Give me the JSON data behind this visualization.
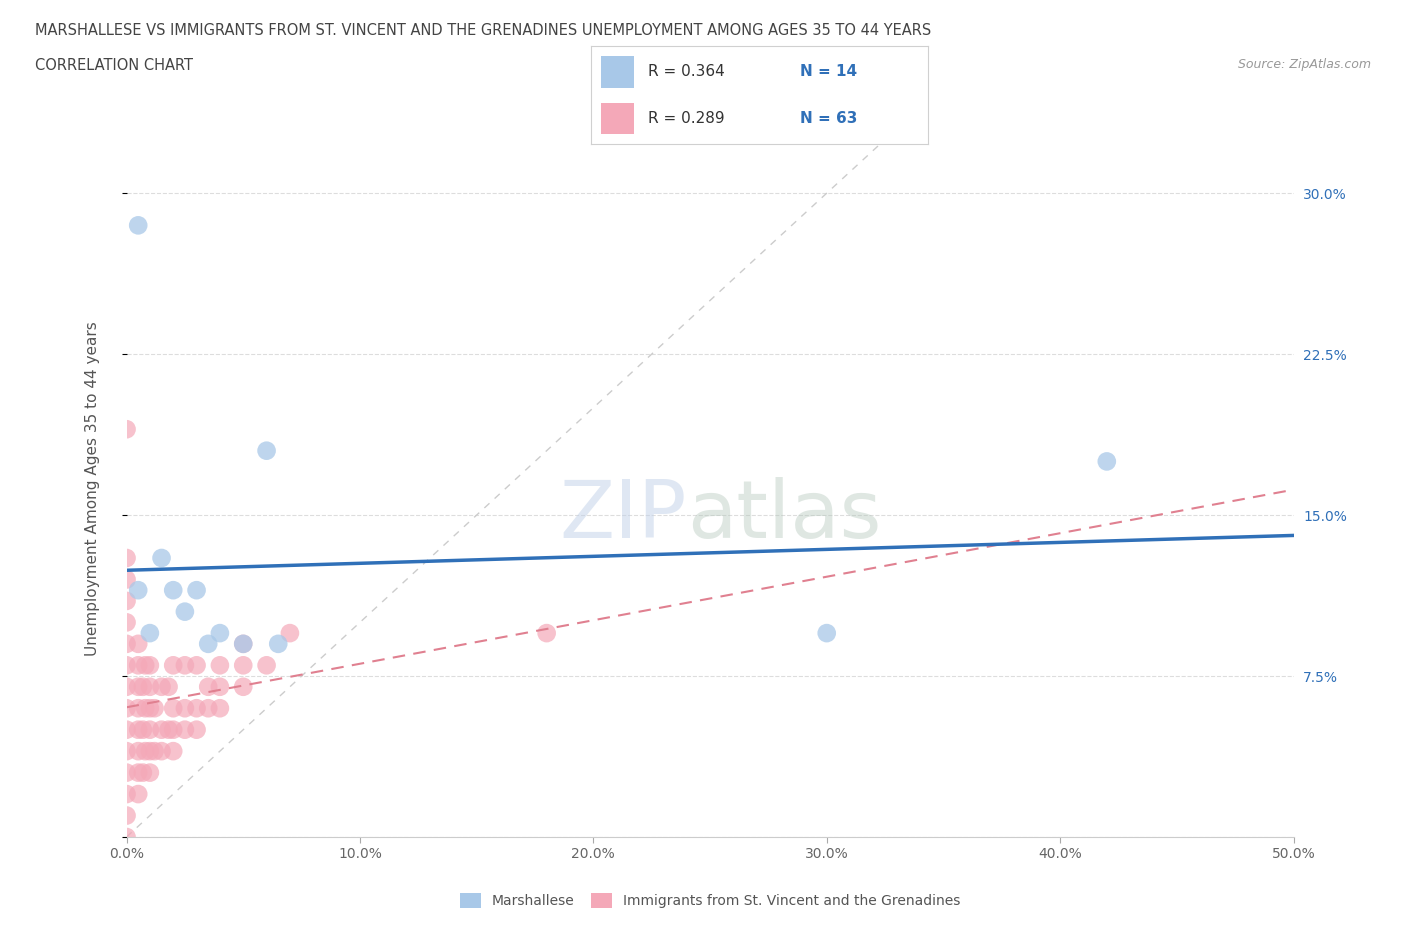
{
  "title_line1": "MARSHALLESE VS IMMIGRANTS FROM ST. VINCENT AND THE GRENADINES UNEMPLOYMENT AMONG AGES 35 TO 44 YEARS",
  "title_line2": "CORRELATION CHART",
  "source": "Source: ZipAtlas.com",
  "ylabel": "Unemployment Among Ages 35 to 44 years",
  "xlim": [
    0.0,
    0.5
  ],
  "ylim": [
    0.0,
    0.325
  ],
  "xticks": [
    0.0,
    0.1,
    0.2,
    0.3,
    0.4,
    0.5
  ],
  "yticks": [
    0.0,
    0.075,
    0.15,
    0.225,
    0.3
  ],
  "xticklabels": [
    "0.0%",
    "10.0%",
    "20.0%",
    "30.0%",
    "40.0%",
    "50.0%"
  ],
  "yticklabels_right": [
    "",
    "7.5%",
    "15.0%",
    "22.5%",
    "30.0%"
  ],
  "watermark_zip": "ZIP",
  "watermark_atlas": "atlas",
  "blue_color": "#a8c8e8",
  "pink_color": "#f4a8b8",
  "trend_blue": "#3070b8",
  "trend_pink": "#e08090",
  "ref_line_color": "#cccccc",
  "grid_color": "#dddddd",
  "background": "#ffffff",
  "legend_label1": "Marshallese",
  "legend_label2": "Immigrants from St. Vincent and the Grenadines",
  "marshallese_x": [
    0.005,
    0.005,
    0.01,
    0.015,
    0.02,
    0.025,
    0.03,
    0.035,
    0.04,
    0.05,
    0.06,
    0.065,
    0.3,
    0.42
  ],
  "marshallese_y": [
    0.285,
    0.115,
    0.095,
    0.13,
    0.115,
    0.105,
    0.115,
    0.09,
    0.095,
    0.09,
    0.18,
    0.09,
    0.095,
    0.175
  ],
  "stv_x": [
    0.0,
    0.0,
    0.0,
    0.0,
    0.0,
    0.0,
    0.0,
    0.0,
    0.0,
    0.0,
    0.0,
    0.0,
    0.0,
    0.0,
    0.0,
    0.005,
    0.005,
    0.005,
    0.005,
    0.005,
    0.005,
    0.005,
    0.005,
    0.007,
    0.007,
    0.007,
    0.008,
    0.008,
    0.008,
    0.01,
    0.01,
    0.01,
    0.01,
    0.01,
    0.01,
    0.012,
    0.012,
    0.015,
    0.015,
    0.015,
    0.018,
    0.018,
    0.02,
    0.02,
    0.02,
    0.02,
    0.025,
    0.025,
    0.025,
    0.03,
    0.03,
    0.03,
    0.035,
    0.035,
    0.04,
    0.04,
    0.04,
    0.05,
    0.05,
    0.05,
    0.06,
    0.07,
    0.18
  ],
  "stv_y": [
    0.0,
    0.01,
    0.02,
    0.03,
    0.04,
    0.05,
    0.06,
    0.07,
    0.08,
    0.09,
    0.1,
    0.11,
    0.12,
    0.13,
    0.19,
    0.02,
    0.03,
    0.04,
    0.05,
    0.06,
    0.07,
    0.08,
    0.09,
    0.03,
    0.05,
    0.07,
    0.04,
    0.06,
    0.08,
    0.03,
    0.04,
    0.05,
    0.06,
    0.07,
    0.08,
    0.04,
    0.06,
    0.04,
    0.05,
    0.07,
    0.05,
    0.07,
    0.04,
    0.05,
    0.06,
    0.08,
    0.05,
    0.06,
    0.08,
    0.05,
    0.06,
    0.08,
    0.06,
    0.07,
    0.06,
    0.07,
    0.08,
    0.07,
    0.08,
    0.09,
    0.08,
    0.095,
    0.095
  ]
}
